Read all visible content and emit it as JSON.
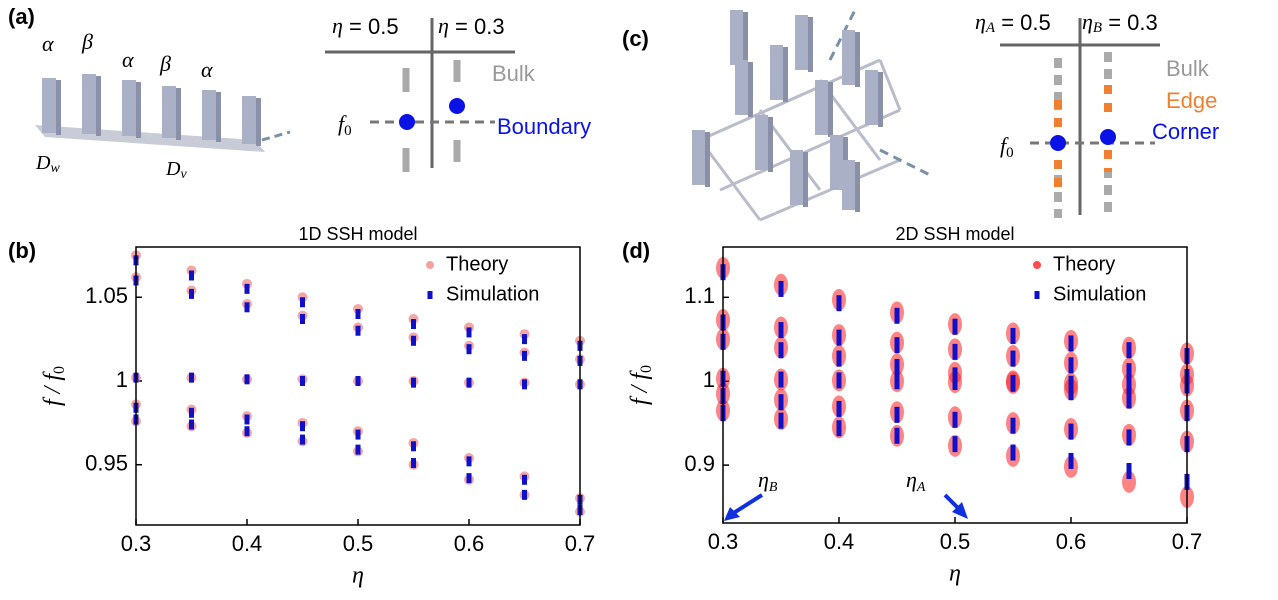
{
  "panel_labels": [
    "(a)",
    "(b)",
    "(c)",
    "(d)"
  ],
  "diagram_a": {
    "pillar_labels": [
      "α",
      "β",
      "α",
      "β",
      "α"
    ],
    "d_w": {
      "main": "D",
      "sub": "w"
    },
    "d_v": {
      "main": "D",
      "sub": "v"
    },
    "left_eta": {
      "main": "η",
      "rest": " =  0.5"
    },
    "right_eta": {
      "main": "η",
      "rest": " =  0.3"
    },
    "bulk": "Bulk",
    "boundary": "Boundary",
    "f0": {
      "main": "f",
      "sub": "0"
    }
  },
  "diagram_c": {
    "left_eta": {
      "main": "η",
      "sub": "A",
      "rest": " =  0.5"
    },
    "right_eta": {
      "main": "η",
      "sub": "B",
      "rest": " =  0.3"
    },
    "bulk": "Bulk",
    "edge": "Edge",
    "corner": "Corner",
    "f0": {
      "main": "f",
      "sub": "0"
    }
  },
  "annotations_d": [
    {
      "main": "η",
      "sub": "B"
    },
    {
      "main": "η",
      "sub": "A"
    }
  ],
  "chart_data": [
    {
      "type": "scatter",
      "title": "1D SSH model",
      "x_label": "η",
      "y_label": {
        "main": "f / f",
        "sub": "0"
      },
      "xlim": [
        0.3,
        0.7
      ],
      "xticks": [
        0.3,
        0.4,
        0.5,
        0.6,
        0.7
      ],
      "ylim": [
        0.914,
        1.08
      ],
      "yticks": [
        0.95,
        1,
        1.05
      ],
      "legend": "upper right",
      "series": [
        {
          "name": "Theory",
          "color": "#f08a8a",
          "x": [
            0.3,
            0.35,
            0.4,
            0.45,
            0.5,
            0.55,
            0.6,
            0.65,
            0.7,
            0.3,
            0.35,
            0.4,
            0.45,
            0.5,
            0.55,
            0.6,
            0.65,
            0.7,
            0.3,
            0.35,
            0.4,
            0.45,
            0.5,
            0.55,
            0.6,
            0.65,
            0.7,
            0.3,
            0.35,
            0.4,
            0.45,
            0.5,
            0.55,
            0.6,
            0.65,
            0.7,
            0.3,
            0.35,
            0.4,
            0.45,
            0.5,
            0.55,
            0.6,
            0.65,
            0.7
          ],
          "values": [
            1.075,
            1.066,
            1.058,
            1.05,
            1.043,
            1.037,
            1.032,
            1.028,
            1.024,
            1.062,
            1.054,
            1.046,
            1.039,
            1.032,
            1.026,
            1.021,
            1.017,
            1.013,
            1.002,
            1.002,
            1.001,
            1.001,
            1.0,
            1.0,
            0.999,
            0.999,
            0.998,
            0.986,
            0.983,
            0.979,
            0.975,
            0.97,
            0.963,
            0.954,
            0.943,
            0.93,
            0.976,
            0.973,
            0.969,
            0.964,
            0.958,
            0.95,
            0.941,
            0.932,
            0.922
          ]
        },
        {
          "name": "Simulation",
          "color": "#1010c8",
          "x": [
            0.3,
            0.35,
            0.4,
            0.45,
            0.5,
            0.55,
            0.6,
            0.65,
            0.7,
            0.3,
            0.35,
            0.4,
            0.45,
            0.5,
            0.55,
            0.6,
            0.65,
            0.7,
            0.3,
            0.35,
            0.4,
            0.45,
            0.5,
            0.55,
            0.6,
            0.65,
            0.7,
            0.3,
            0.35,
            0.4,
            0.45,
            0.5,
            0.55,
            0.6,
            0.65,
            0.7,
            0.3,
            0.35,
            0.4,
            0.45,
            0.5,
            0.55,
            0.6,
            0.65,
            0.7
          ],
          "values": [
            1.072,
            1.063,
            1.055,
            1.047,
            1.04,
            1.034,
            1.029,
            1.025,
            1.021,
            1.06,
            1.052,
            1.044,
            1.037,
            1.03,
            1.024,
            1.019,
            1.015,
            1.012,
            1.002,
            1.002,
            1.001,
            1.0,
            1.0,
            0.999,
            0.999,
            0.998,
            0.998,
            0.984,
            0.981,
            0.977,
            0.973,
            0.968,
            0.961,
            0.952,
            0.941,
            0.929,
            0.977,
            0.974,
            0.97,
            0.965,
            0.959,
            0.951,
            0.942,
            0.932,
            0.923
          ]
        }
      ]
    },
    {
      "type": "scatter",
      "title": "2D SSH model",
      "x_label": "η",
      "y_label": {
        "main": "f / f",
        "sub": "0"
      },
      "xlim": [
        0.3,
        0.7
      ],
      "xticks": [
        0.3,
        0.4,
        0.5,
        0.6,
        0.7
      ],
      "ylim": [
        0.831,
        1.16
      ],
      "yticks": [
        0.9,
        1,
        1.1
      ],
      "legend": "upper right",
      "series": [
        {
          "name": "Theory",
          "color": "#ff2020",
          "x": [
            0.3,
            0.35,
            0.4,
            0.45,
            0.5,
            0.55,
            0.6,
            0.65,
            0.7,
            0.3,
            0.35,
            0.4,
            0.45,
            0.5,
            0.55,
            0.6,
            0.65,
            0.7,
            0.3,
            0.35,
            0.4,
            0.45,
            0.5,
            0.55,
            0.6,
            0.65,
            0.7,
            0.3,
            0.35,
            0.4,
            0.45,
            0.5,
            0.55,
            0.6,
            0.65,
            0.7,
            0.3,
            0.35,
            0.4,
            0.45,
            0.5,
            0.55,
            0.6,
            0.65,
            0.7,
            0.3,
            0.35,
            0.4,
            0.45,
            0.5,
            0.55,
            0.6,
            0.65,
            0.7
          ],
          "values": [
            1.135,
            1.115,
            1.097,
            1.082,
            1.068,
            1.057,
            1.048,
            1.04,
            1.033,
            1.073,
            1.064,
            1.055,
            1.046,
            1.038,
            1.03,
            1.022,
            1.015,
            1.008,
            1.05,
            1.04,
            1.03,
            1.02,
            1.01,
            1.0,
            0.99,
            0.98,
            0.965,
            1.003,
            1.002,
            1.001,
            1.0,
            0.999,
            0.998,
            0.997,
            0.996,
            0.995,
            0.985,
            0.978,
            0.97,
            0.963,
            0.957,
            0.95,
            0.943,
            0.936,
            0.928,
            0.965,
            0.955,
            0.945,
            0.935,
            0.923,
            0.911,
            0.898,
            0.88,
            0.862
          ]
        },
        {
          "name": "Simulation",
          "color": "#1010c8",
          "x": [
            0.3,
            0.35,
            0.4,
            0.45,
            0.5,
            0.55,
            0.6,
            0.65,
            0.7,
            0.3,
            0.35,
            0.4,
            0.45,
            0.5,
            0.55,
            0.6,
            0.65,
            0.7,
            0.3,
            0.35,
            0.4,
            0.45,
            0.5,
            0.55,
            0.6,
            0.65,
            0.7,
            0.3,
            0.35,
            0.4,
            0.45,
            0.5,
            0.55,
            0.6,
            0.65,
            0.7,
            0.3,
            0.35,
            0.4,
            0.45,
            0.5,
            0.55,
            0.6,
            0.65,
            0.7,
            0.3,
            0.35,
            0.4,
            0.45,
            0.5,
            0.55,
            0.6,
            0.65,
            0.7
          ],
          "values": [
            1.13,
            1.11,
            1.093,
            1.078,
            1.065,
            1.054,
            1.045,
            1.037,
            1.03,
            1.07,
            1.061,
            1.052,
            1.043,
            1.035,
            1.027,
            1.019,
            1.012,
            1.005,
            1.047,
            1.037,
            1.027,
            1.017,
            1.007,
            0.997,
            0.987,
            0.977,
            0.962,
            1.003,
            1.002,
            1.001,
            1.0,
            0.999,
            0.998,
            0.997,
            0.996,
            0.995,
            0.982,
            0.975,
            0.967,
            0.96,
            0.954,
            0.947,
            0.94,
            0.933,
            0.925,
            0.962,
            0.953,
            0.944,
            0.935,
            0.925,
            0.915,
            0.905,
            0.893,
            0.88
          ]
        }
      ]
    }
  ]
}
